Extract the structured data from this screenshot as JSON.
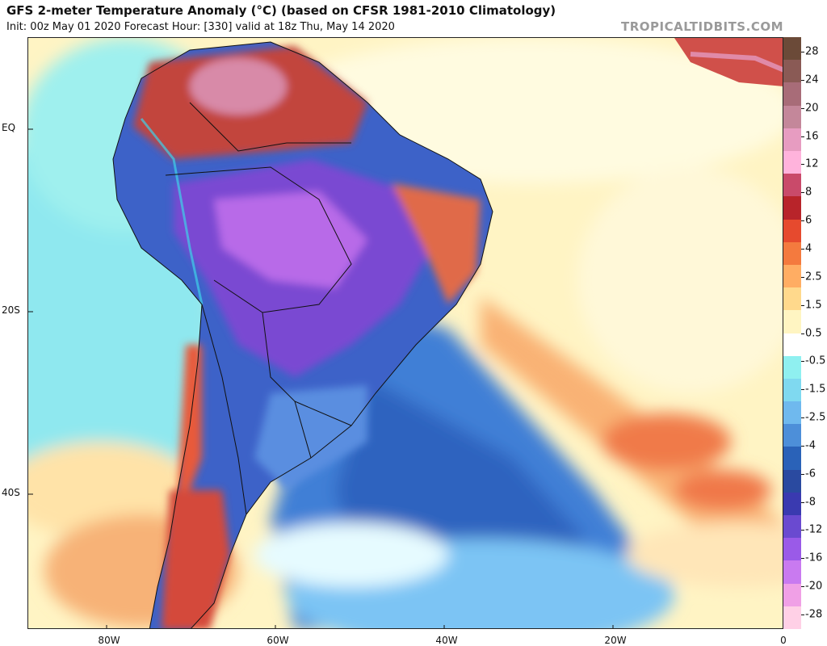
{
  "header": {
    "title": "GFS 2-meter Temperature Anomaly (°C) (based on CFSR 1981-2010 Climatology)",
    "subtitle": "Init: 00z May 01 2020   Forecast Hour: [330]   valid at 18z Thu, May 14 2020",
    "credit": "TROPICALTIDBITS.COM"
  },
  "axes": {
    "lat_labels": [
      "EQ",
      "20S",
      "40S"
    ],
    "lon_labels": [
      "80W",
      "60W",
      "40W",
      "20W",
      "0"
    ]
  },
  "colorbar": {
    "labels": [
      "28",
      "24",
      "20",
      "16",
      "12",
      "8",
      "6",
      "4",
      "2.5",
      "1.5",
      "0.5",
      "-0.5",
      "-1.5",
      "-2.5",
      "-4",
      "-6",
      "-8",
      "-12",
      "-16",
      "-20",
      "-28"
    ],
    "colors": [
      "#6b4a38",
      "#8a5a55",
      "#a86c78",
      "#c4879a",
      "#e79cc1",
      "#ffb3dc",
      "#c94a6a",
      "#b8242a",
      "#e64a2e",
      "#f47a3e",
      "#ffad63",
      "#ffd98c",
      "#fff5c2",
      "#ffffff",
      "#8ff0f0",
      "#7fd9f0",
      "#6fb9ee",
      "#4d8fd9",
      "#2a62b8",
      "#2a4aa0",
      "#3a3ab0",
      "#6a4ad0",
      "#9a5ae8",
      "#c97af0",
      "#f0a0e6",
      "#ffd0e6"
    ]
  }
}
